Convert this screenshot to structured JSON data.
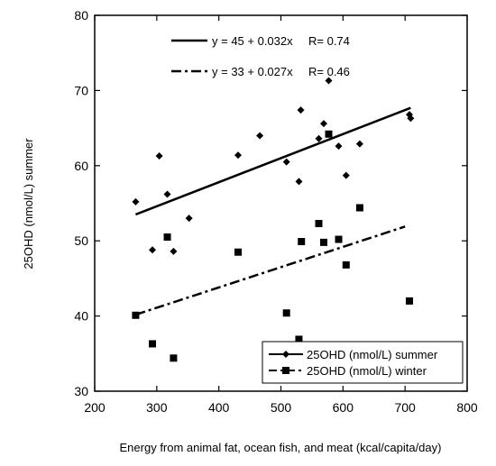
{
  "chart_data": {
    "type": "scatter",
    "xlabel": "Energy from animal fat, ocean fish, and meat (kcal/capita/day)",
    "ylabel": "25OHD (nmol/L) summer",
    "xlim": [
      200,
      800
    ],
    "ylim": [
      30,
      80
    ],
    "x_ticks": [
      200,
      300,
      400,
      500,
      600,
      700,
      800
    ],
    "y_ticks": [
      30,
      40,
      50,
      60,
      70,
      80
    ],
    "grid": false,
    "legend_position": "bottom-right",
    "series": [
      {
        "name": "25OHD (nmol/L) summer",
        "marker": "diamond",
        "points": [
          {
            "x": 266,
            "y": 55.2
          },
          {
            "x": 293,
            "y": 48.8
          },
          {
            "x": 304,
            "y": 61.3
          },
          {
            "x": 317,
            "y": 56.2
          },
          {
            "x": 327,
            "y": 48.6
          },
          {
            "x": 352,
            "y": 53.0
          },
          {
            "x": 431,
            "y": 61.4
          },
          {
            "x": 466,
            "y": 64.0
          },
          {
            "x": 509,
            "y": 60.5
          },
          {
            "x": 529,
            "y": 57.9
          },
          {
            "x": 532,
            "y": 67.4
          },
          {
            "x": 561,
            "y": 63.6
          },
          {
            "x": 569,
            "y": 65.6
          },
          {
            "x": 577,
            "y": 71.3
          },
          {
            "x": 593,
            "y": 62.6
          },
          {
            "x": 605,
            "y": 58.7
          },
          {
            "x": 627,
            "y": 62.9
          },
          {
            "x": 707,
            "y": 66.8
          },
          {
            "x": 709,
            "y": 66.3
          }
        ]
      },
      {
        "name": "25OHD (nmol/L) winter",
        "marker": "square",
        "points": [
          {
            "x": 266,
            "y": 40.1
          },
          {
            "x": 293,
            "y": 36.3
          },
          {
            "x": 317,
            "y": 50.5
          },
          {
            "x": 327,
            "y": 34.4
          },
          {
            "x": 431,
            "y": 48.5
          },
          {
            "x": 509,
            "y": 40.4
          },
          {
            "x": 529,
            "y": 36.9
          },
          {
            "x": 533,
            "y": 49.9
          },
          {
            "x": 561,
            "y": 52.3
          },
          {
            "x": 569,
            "y": 49.8
          },
          {
            "x": 577,
            "y": 64.2
          },
          {
            "x": 593,
            "y": 50.2
          },
          {
            "x": 605,
            "y": 46.8
          },
          {
            "x": 627,
            "y": 54.4
          },
          {
            "x": 707,
            "y": 42.0
          }
        ]
      }
    ],
    "fit_lines": [
      {
        "label": "y = 45 + 0.032x",
        "r_label": "R= 0.74",
        "style": "solid",
        "intercept": 45,
        "slope": 0.032,
        "x_range": [
          266,
          709
        ]
      },
      {
        "label": "y = 33 + 0.027x",
        "r_label": "R= 0.46",
        "style": "dash-dot",
        "intercept": 33,
        "slope": 0.027,
        "x_range": [
          266,
          700
        ]
      }
    ]
  }
}
